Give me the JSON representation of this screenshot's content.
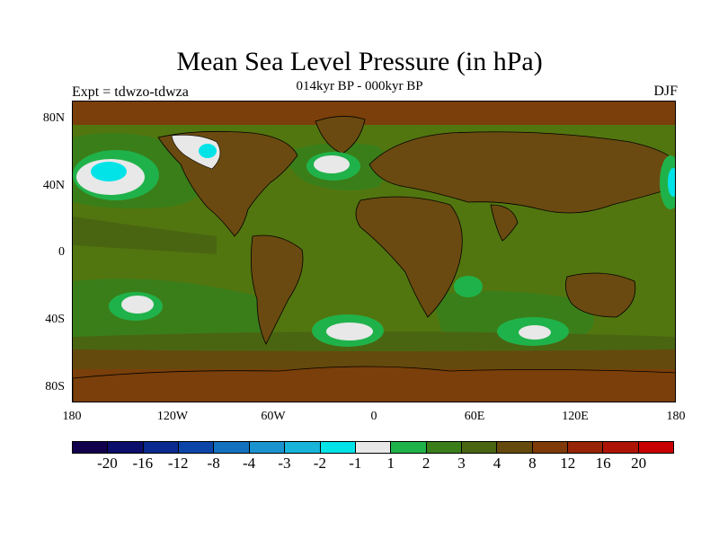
{
  "header": {
    "title": "Mean Sea Level Pressure (in hPa)",
    "subtitle": "014kyr BP - 000kyr BP",
    "left_label": "Expt = tdwzo-tdwza",
    "season": "DJF"
  },
  "map": {
    "lat_ticks": [
      "80N",
      "40N",
      "0",
      "40S",
      "80S"
    ],
    "lon_ticks": [
      "180",
      "120W",
      "60W",
      "0",
      "60E",
      "120E",
      "180"
    ],
    "land_color": "#6a4a10",
    "ocean_base_color": "#52760f"
  },
  "legend": {
    "colors": [
      "#13004d",
      "#0c0e6b",
      "#0a2a90",
      "#0b45a8",
      "#1371bf",
      "#1a93cf",
      "#18b4da",
      "#02e3e8",
      "#e8e8e8",
      "#20b24a",
      "#3a7e1a",
      "#4a6512",
      "#654a0d",
      "#7f3a08",
      "#962405",
      "#ad1403",
      "#c80000"
    ],
    "labels": [
      "-20",
      "-16",
      "-12",
      "-8",
      "-4",
      "-3",
      "-2",
      "-1",
      "1",
      "2",
      "3",
      "4",
      "8",
      "12",
      "16",
      "20"
    ]
  }
}
